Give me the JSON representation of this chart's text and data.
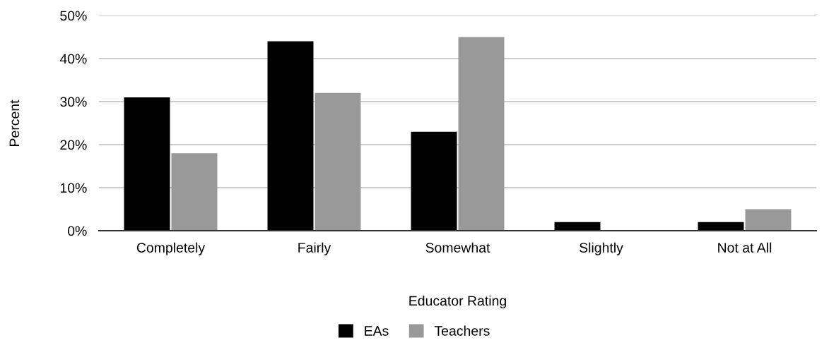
{
  "chart_data": {
    "type": "bar",
    "xlabel": "Educator Rating",
    "ylabel": "Percent",
    "categories": [
      "Completely",
      "Fairly",
      "Somewhat",
      "Slightly",
      "Not at All"
    ],
    "series": [
      {
        "name": "EAs",
        "color": "#000000",
        "values": [
          31,
          44,
          23,
          2,
          2
        ]
      },
      {
        "name": "Teachers",
        "color": "#999999",
        "values": [
          18,
          32,
          45,
          0,
          5
        ]
      }
    ],
    "ylim": [
      0,
      50
    ],
    "yticks": [
      {
        "value": 0,
        "label": "0%"
      },
      {
        "value": 10,
        "label": "10%"
      },
      {
        "value": 20,
        "label": "20%"
      },
      {
        "value": 30,
        "label": "30%"
      },
      {
        "value": 40,
        "label": "40%"
      },
      {
        "value": 50,
        "label": "50%"
      }
    ],
    "grid": "y",
    "legend": "bottom"
  }
}
